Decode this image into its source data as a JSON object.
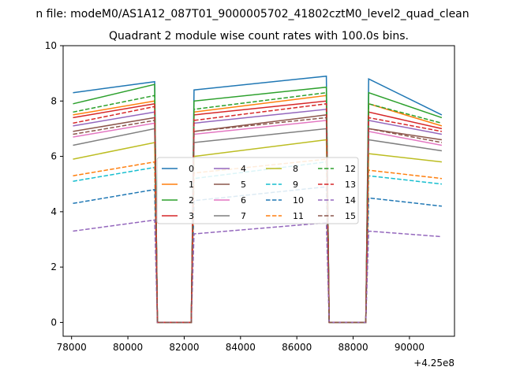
{
  "chart_data": {
    "type": "line",
    "suptitle": "n file: modeM0/AS1A12_087T01_9000005702_41802cztM0_level2_quad_clean",
    "title": "Quadrant 2 module wise count rates with 100.0s bins.",
    "xlabel": "",
    "ylabel": "",
    "x_offset_label": "+4.25e8",
    "xlim": [
      77700,
      91600
    ],
    "ylim": [
      -0.5,
      10
    ],
    "x_ticks": [
      {
        "value": 78000,
        "label": "78000"
      },
      {
        "value": 80000,
        "label": "80000"
      },
      {
        "value": 82000,
        "label": "82000"
      },
      {
        "value": 84000,
        "label": "84000"
      },
      {
        "value": 86000,
        "label": "86000"
      },
      {
        "value": 88000,
        "label": "88000"
      },
      {
        "value": 90000,
        "label": "90000"
      }
    ],
    "y_ticks": [
      {
        "value": 0,
        "label": "0"
      },
      {
        "value": 2,
        "label": "2"
      },
      {
        "value": 4,
        "label": "4"
      },
      {
        "value": 6,
        "label": "6"
      },
      {
        "value": 8,
        "label": "8"
      },
      {
        "value": 10,
        "label": "10"
      }
    ],
    "grid": false,
    "legend": {
      "position": "center",
      "columns": 4
    },
    "x": [
      78050,
      80950,
      81050,
      82250,
      82350,
      87050,
      87150,
      88450,
      88550,
      91150
    ],
    "series": [
      {
        "name": "0",
        "color": "#1f77b4",
        "dash": "solid",
        "values": [
          8.3,
          8.7,
          0,
          0,
          8.4,
          8.9,
          0,
          0,
          8.8,
          7.5
        ]
      },
      {
        "name": "1",
        "color": "#ff7f0e",
        "dash": "solid",
        "values": [
          7.5,
          8.0,
          0,
          0,
          7.6,
          8.2,
          0,
          0,
          7.9,
          7.1
        ]
      },
      {
        "name": "2",
        "color": "#2ca02c",
        "dash": "solid",
        "values": [
          7.9,
          8.6,
          0,
          0,
          8.0,
          8.5,
          0,
          0,
          8.3,
          7.4
        ]
      },
      {
        "name": "3",
        "color": "#d62728",
        "dash": "solid",
        "values": [
          7.4,
          7.9,
          0,
          0,
          7.5,
          8.0,
          0,
          0,
          7.6,
          7.0
        ]
      },
      {
        "name": "4",
        "color": "#9467bd",
        "dash": "solid",
        "values": [
          7.1,
          7.6,
          0,
          0,
          7.2,
          7.7,
          0,
          0,
          7.3,
          6.8
        ]
      },
      {
        "name": "5",
        "color": "#8c564b",
        "dash": "solid",
        "values": [
          6.9,
          7.4,
          0,
          0,
          6.9,
          7.5,
          0,
          0,
          7.0,
          6.6
        ]
      },
      {
        "name": "6",
        "color": "#e377c2",
        "dash": "solid",
        "values": [
          6.7,
          7.2,
          0,
          0,
          6.8,
          7.3,
          0,
          0,
          6.9,
          6.4
        ]
      },
      {
        "name": "7",
        "color": "#7f7f7f",
        "dash": "solid",
        "values": [
          6.4,
          7.0,
          0,
          0,
          6.5,
          7.0,
          0,
          0,
          6.6,
          6.2
        ]
      },
      {
        "name": "8",
        "color": "#bcbd22",
        "dash": "solid",
        "values": [
          5.9,
          6.5,
          0,
          0,
          6.0,
          6.6,
          0,
          0,
          6.1,
          5.8
        ]
      },
      {
        "name": "9",
        "color": "#17becf",
        "dash": "dashed",
        "values": [
          5.1,
          5.6,
          0,
          0,
          5.2,
          5.8,
          0,
          0,
          5.3,
          5.0
        ]
      },
      {
        "name": "10",
        "color": "#1f77b4",
        "dash": "dashed",
        "values": [
          4.3,
          4.8,
          0,
          0,
          4.4,
          4.9,
          0,
          0,
          4.5,
          4.2
        ]
      },
      {
        "name": "11",
        "color": "#ff7f0e",
        "dash": "dashed",
        "values": [
          5.3,
          5.8,
          0,
          0,
          5.4,
          5.9,
          0,
          0,
          5.5,
          5.2
        ]
      },
      {
        "name": "12",
        "color": "#2ca02c",
        "dash": "dashed",
        "values": [
          7.6,
          8.2,
          0,
          0,
          7.7,
          8.3,
          0,
          0,
          7.9,
          7.2
        ]
      },
      {
        "name": "13",
        "color": "#d62728",
        "dash": "dashed",
        "values": [
          7.2,
          7.8,
          0,
          0,
          7.3,
          7.9,
          0,
          0,
          7.4,
          6.9
        ]
      },
      {
        "name": "14",
        "color": "#9467bd",
        "dash": "dashed",
        "values": [
          3.3,
          3.7,
          0,
          0,
          3.2,
          3.6,
          0,
          0,
          3.3,
          3.1
        ]
      },
      {
        "name": "15",
        "color": "#8c564b",
        "dash": "dashed",
        "values": [
          6.8,
          7.3,
          0,
          0,
          6.9,
          7.4,
          0,
          0,
          7.0,
          6.5
        ]
      }
    ]
  }
}
